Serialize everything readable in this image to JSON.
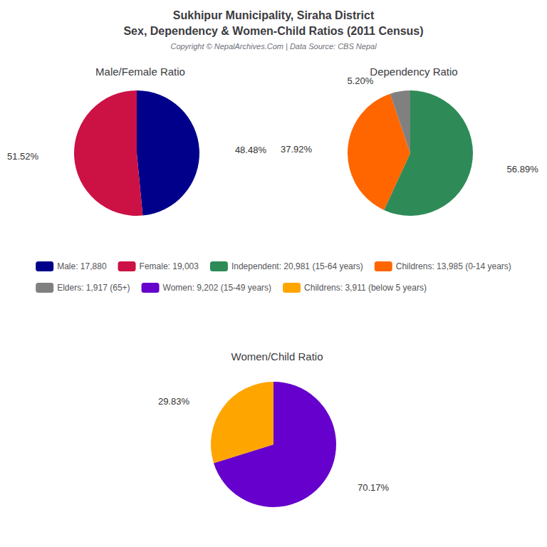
{
  "title": "Sukhipur Municipality, Siraha District",
  "subtitle": "Sex, Dependency & Women-Child Ratios (2011 Census)",
  "annotations": [
    "Copyright © NepalArchives.Com | Data Source: CBS Nepal"
  ],
  "chart_data": [
    {
      "type": "pie",
      "title": "Male/Female Ratio",
      "categories": [
        "Male: 17,880",
        "Female: 19,003"
      ],
      "values": [
        48.48,
        51.52
      ],
      "value_labels": [
        "48.48%",
        "51.52%"
      ],
      "colors": [
        "#00008B",
        "#CC1144"
      ],
      "data_labels": true,
      "legend": "center"
    },
    {
      "type": "pie",
      "title": "Dependency Ratio",
      "categories": [
        "Independent: 20,981 (15-64 years)",
        "Childrens: 13,985 (0-14 years)",
        "Elders: 1,917 (65+)"
      ],
      "values": [
        56.89,
        37.92,
        5.2
      ],
      "value_labels": [
        "56.89%",
        "37.92%",
        "5.20%"
      ],
      "colors": [
        "#2E8B57",
        "#FF6600",
        "#808080"
      ],
      "data_labels": true,
      "legend": "center"
    },
    {
      "type": "pie",
      "title": "Women/Child Ratio",
      "categories": [
        "Women: 9,202 (15-49 years)",
        "Childrens: 3,911 (below 5 years)"
      ],
      "values": [
        70.17,
        29.83
      ],
      "value_labels": [
        "70.17%",
        "29.83%"
      ],
      "colors": [
        "#6600CC",
        "#FFA500"
      ],
      "data_labels": true,
      "legend": "center"
    }
  ]
}
